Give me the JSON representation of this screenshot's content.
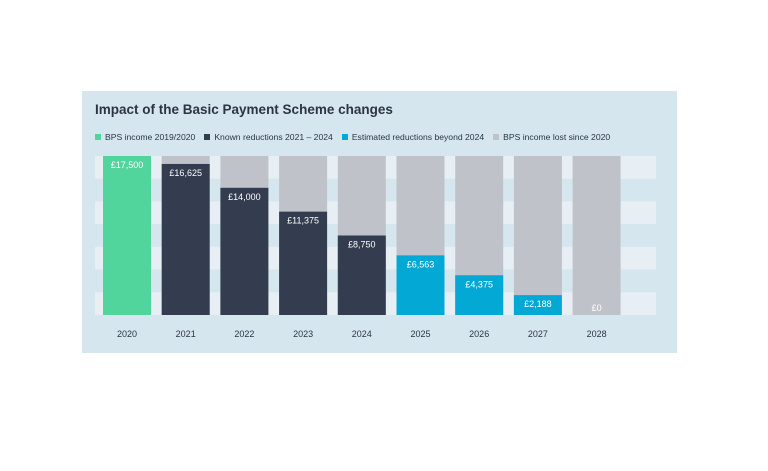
{
  "chart_data": {
    "type": "bar",
    "title": "Impact of the Basic Payment Scheme changes",
    "categories": [
      "2020",
      "2021",
      "2022",
      "2023",
      "2024",
      "2025",
      "2026",
      "2027",
      "2028"
    ],
    "values": [
      17500,
      16625,
      14000,
      11375,
      8750,
      6563,
      4375,
      2188,
      0
    ],
    "value_labels": [
      "£17,500",
      "£16,625",
      "£14,000",
      "£11,375",
      "£8,750",
      "£6,563",
      "£4,375",
      "£2,188",
      "£0"
    ],
    "bar_kind": [
      "income",
      "known",
      "known",
      "known",
      "known",
      "estimated",
      "estimated",
      "estimated",
      "estimated"
    ],
    "baseline_total": 17500,
    "ylim": [
      0,
      17500
    ],
    "grid": true,
    "legend_position": "top-left",
    "legend": [
      {
        "key": "income",
        "label": "BPS income 2019/2020",
        "color": "#52d49d"
      },
      {
        "key": "known",
        "label": "Known reductions 2021 – 2024",
        "color": "#333d4f"
      },
      {
        "key": "estimated",
        "label": "Estimated reductions beyond 2024",
        "color": "#04a8d5"
      },
      {
        "key": "lost",
        "label": "BPS income lost since 2020",
        "color": "#bfc3c9"
      }
    ]
  }
}
